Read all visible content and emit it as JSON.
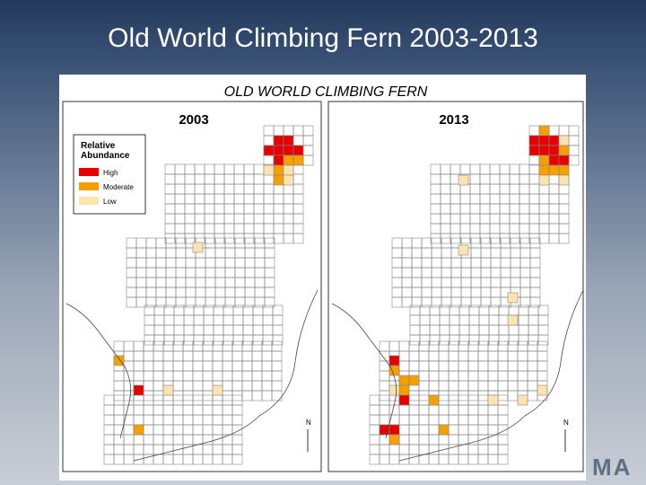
{
  "slide_title": "Old World Climbing Fern 2003-2013",
  "map_title": "OLD WORLD CLIMBING FERN",
  "maps": [
    {
      "year": "2003"
    },
    {
      "year": "2013"
    }
  ],
  "legend": {
    "title": "Relative Abundance",
    "items": [
      "High",
      "Moderate",
      "Low"
    ]
  },
  "north_label": "N",
  "logo": "MA"
}
